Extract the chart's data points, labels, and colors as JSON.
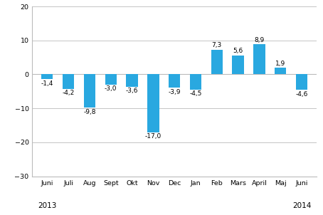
{
  "categories": [
    "Juni",
    "Juli",
    "Aug",
    "Sept",
    "Okt",
    "Nov",
    "Dec",
    "Jan",
    "Feb",
    "Mars",
    "April",
    "Maj",
    "Juni"
  ],
  "year_labels": [
    [
      "2013",
      0
    ],
    [
      "2014",
      12
    ]
  ],
  "values": [
    -1.4,
    -4.2,
    -9.8,
    -3.0,
    -3.6,
    -17.0,
    -3.9,
    -4.5,
    7.3,
    5.6,
    8.9,
    1.9,
    -4.6
  ],
  "bar_color": "#29a8e0",
  "ylim": [
    -30,
    20
  ],
  "yticks": [
    -30,
    -20,
    -10,
    0,
    10,
    20
  ],
  "background_color": "#ffffff",
  "grid_color": "#bbbbbb",
  "label_fontsize": 6.5,
  "tick_fontsize": 6.8,
  "year_fontsize": 7.5,
  "bar_width": 0.55
}
